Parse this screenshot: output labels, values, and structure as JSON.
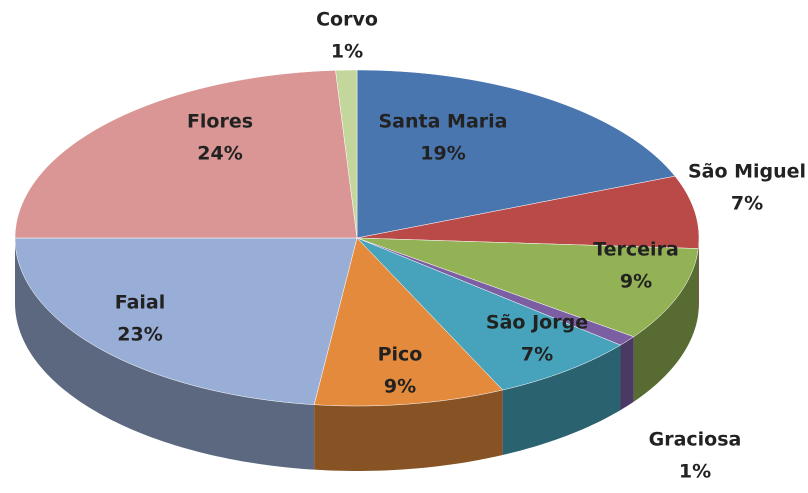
{
  "chart_data": {
    "type": "pie",
    "categories": [
      "Santa Maria",
      "São Miguel",
      "Terceira",
      "Graciosa",
      "São Jorge",
      "Pico",
      "Faial",
      "Flores",
      "Corvo"
    ],
    "values": [
      19,
      7,
      9,
      1,
      7,
      9,
      23,
      24,
      1
    ],
    "value_labels": [
      "19%",
      "7%",
      "9%",
      "1%",
      "7%",
      "9%",
      "23%",
      "24%",
      "1%"
    ],
    "colors": [
      "#4a76b0",
      "#b94a48",
      "#93b255",
      "#7c5fa3",
      "#46a3bb",
      "#e38a3c",
      "#98aed6",
      "#d99694",
      "#c3d69b"
    ]
  }
}
